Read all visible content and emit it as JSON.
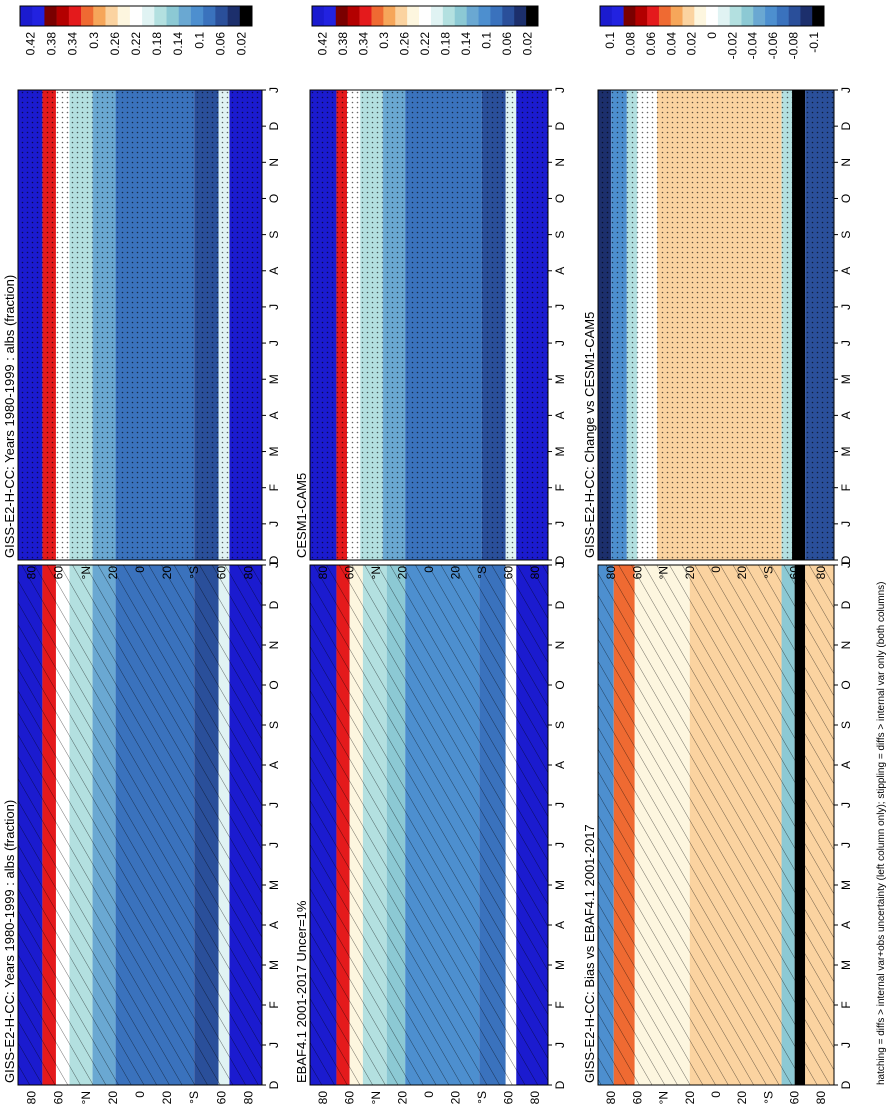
{
  "chart_data": [
    {
      "type": "heatmap",
      "title": "GISS-E2-H-CC: Years 1980-1999 : albs (fraction)",
      "x_ticks": [
        "D",
        "J",
        "F",
        "M",
        "A",
        "M",
        "J",
        "J",
        "A",
        "S",
        "O",
        "N",
        "D",
        "J"
      ],
      "y_ticks": [
        "80",
        "60",
        "°N",
        "20",
        "0",
        "20",
        "°S",
        "60",
        "80"
      ],
      "colorbar_ticks": [
        "0.42",
        "0.38",
        "0.34",
        "0.3",
        "0.26",
        "0.22",
        "0.18",
        "0.14",
        "0.1",
        "0.06",
        "0.02"
      ],
      "overlay": "hatching",
      "palette": [
        "#1b1bcf",
        "#2222e0",
        "#7a0000",
        "#b30000",
        "#e41a1c",
        "#ef6a32",
        "#f6a65a",
        "#fbd3a0",
        "#fdf6df",
        "#ffffff",
        "#e0f3f3",
        "#b3e0e0",
        "#8cc9d4",
        "#6aa8d2",
        "#4d8fcf",
        "#3a72bd",
        "#2a4f9a",
        "#1c2f6c",
        "#000000"
      ],
      "zones": [
        {
          "lat_from": 90,
          "lat_to": 72,
          "value": 0.46
        },
        {
          "lat_from": 72,
          "lat_to": 62,
          "value": 0.34
        },
        {
          "lat_from": 62,
          "lat_to": 52,
          "value": 0.22
        },
        {
          "lat_from": 52,
          "lat_to": 35,
          "value": 0.16
        },
        {
          "lat_from": 35,
          "lat_to": 18,
          "value": 0.13
        },
        {
          "lat_from": 18,
          "lat_to": -40,
          "value": 0.08
        },
        {
          "lat_from": -40,
          "lat_to": -58,
          "value": 0.06
        },
        {
          "lat_from": -58,
          "lat_to": -66,
          "value": 0.2
        },
        {
          "lat_from": -66,
          "lat_to": -90,
          "value": 0.46
        }
      ]
    },
    {
      "type": "heatmap",
      "title": "GISS-E2-H-CC: Years 1980-1999 : albs (fraction)",
      "x_ticks": [
        "D",
        "J",
        "F",
        "M",
        "A",
        "M",
        "J",
        "J",
        "A",
        "S",
        "O",
        "N",
        "D",
        "J"
      ],
      "y_ticks": [
        "80",
        "60",
        "°N",
        "20",
        "0",
        "20",
        "°S",
        "60",
        "80"
      ],
      "colorbar_ticks": [
        "0.42",
        "0.38",
        "0.34",
        "0.3",
        "0.26",
        "0.22",
        "0.18",
        "0.14",
        "0.1",
        "0.06",
        "0.02"
      ],
      "overlay": "stippling",
      "palette": [
        "#1b1bcf",
        "#2222e0",
        "#7a0000",
        "#b30000",
        "#e41a1c",
        "#ef6a32",
        "#f6a65a",
        "#fbd3a0",
        "#fdf6df",
        "#ffffff",
        "#e0f3f3",
        "#b3e0e0",
        "#8cc9d4",
        "#6aa8d2",
        "#4d8fcf",
        "#3a72bd",
        "#2a4f9a",
        "#1c2f6c",
        "#000000"
      ],
      "zones": [
        {
          "lat_from": 90,
          "lat_to": 72,
          "value": 0.46
        },
        {
          "lat_from": 72,
          "lat_to": 62,
          "value": 0.34
        },
        {
          "lat_from": 62,
          "lat_to": 52,
          "value": 0.22
        },
        {
          "lat_from": 52,
          "lat_to": 35,
          "value": 0.16
        },
        {
          "lat_from": 35,
          "lat_to": 18,
          "value": 0.13
        },
        {
          "lat_from": 18,
          "lat_to": -40,
          "value": 0.08
        },
        {
          "lat_from": -40,
          "lat_to": -58,
          "value": 0.06
        },
        {
          "lat_from": -58,
          "lat_to": -66,
          "value": 0.2
        },
        {
          "lat_from": -66,
          "lat_to": -90,
          "value": 0.46
        }
      ]
    },
    {
      "type": "heatmap",
      "title": "EBAF4.1 2001-2017 Uncer=1%",
      "x_ticks": [
        "D",
        "J",
        "F",
        "M",
        "A",
        "M",
        "J",
        "J",
        "A",
        "S",
        "O",
        "N",
        "D",
        "J"
      ],
      "y_ticks": [
        "80",
        "60",
        "°N",
        "20",
        "0",
        "20",
        "°S",
        "60",
        "80"
      ],
      "colorbar_ticks": [
        "0.42",
        "0.38",
        "0.34",
        "0.3",
        "0.26",
        "0.22",
        "0.18",
        "0.14",
        "0.1",
        "0.06",
        "0.02"
      ],
      "overlay": "hatching",
      "palette": [
        "#1b1bcf",
        "#2222e0",
        "#7a0000",
        "#b30000",
        "#e41a1c",
        "#ef6a32",
        "#f6a65a",
        "#fbd3a0",
        "#fdf6df",
        "#ffffff",
        "#e0f3f3",
        "#b3e0e0",
        "#8cc9d4",
        "#6aa8d2",
        "#4d8fcf",
        "#3a72bd",
        "#2a4f9a",
        "#1c2f6c",
        "#000000"
      ],
      "zones": [
        {
          "lat_from": 90,
          "lat_to": 70,
          "value": 0.46
        },
        {
          "lat_from": 70,
          "lat_to": 60,
          "value": 0.34
        },
        {
          "lat_from": 60,
          "lat_to": 50,
          "value": 0.24
        },
        {
          "lat_from": 50,
          "lat_to": 32,
          "value": 0.17
        },
        {
          "lat_from": 32,
          "lat_to": 18,
          "value": 0.14
        },
        {
          "lat_from": 18,
          "lat_to": -38,
          "value": 0.09
        },
        {
          "lat_from": -38,
          "lat_to": -58,
          "value": 0.07
        },
        {
          "lat_from": -58,
          "lat_to": -66,
          "value": 0.22
        },
        {
          "lat_from": -66,
          "lat_to": -90,
          "value": 0.46
        }
      ]
    },
    {
      "type": "heatmap",
      "title": "CESM1-CAM5",
      "x_ticks": [
        "D",
        "J",
        "F",
        "M",
        "A",
        "M",
        "J",
        "J",
        "A",
        "S",
        "O",
        "N",
        "D",
        "J"
      ],
      "y_ticks": [
        "80",
        "60",
        "°N",
        "20",
        "0",
        "20",
        "°S",
        "60",
        "80"
      ],
      "colorbar_ticks": [
        "0.42",
        "0.38",
        "0.34",
        "0.3",
        "0.26",
        "0.22",
        "0.18",
        "0.14",
        "0.1",
        "0.06",
        "0.02"
      ],
      "overlay": "stippling",
      "palette": [
        "#1b1bcf",
        "#2222e0",
        "#7a0000",
        "#b30000",
        "#e41a1c",
        "#ef6a32",
        "#f6a65a",
        "#fbd3a0",
        "#fdf6df",
        "#ffffff",
        "#e0f3f3",
        "#b3e0e0",
        "#8cc9d4",
        "#6aa8d2",
        "#4d8fcf",
        "#3a72bd",
        "#2a4f9a",
        "#1c2f6c",
        "#000000"
      ],
      "zones": [
        {
          "lat_from": 90,
          "lat_to": 70,
          "value": 0.46
        },
        {
          "lat_from": 70,
          "lat_to": 62,
          "value": 0.34
        },
        {
          "lat_from": 62,
          "lat_to": 52,
          "value": 0.23
        },
        {
          "lat_from": 52,
          "lat_to": 35,
          "value": 0.16
        },
        {
          "lat_from": 35,
          "lat_to": 18,
          "value": 0.13
        },
        {
          "lat_from": 18,
          "lat_to": -40,
          "value": 0.08
        },
        {
          "lat_from": -40,
          "lat_to": -58,
          "value": 0.06
        },
        {
          "lat_from": -58,
          "lat_to": -66,
          "value": 0.2
        },
        {
          "lat_from": -66,
          "lat_to": -90,
          "value": 0.46
        }
      ]
    },
    {
      "type": "heatmap",
      "title": "GISS-E2-H-CC: Bias vs EBAF4.1 2001-2017",
      "x_ticks": [
        "D",
        "J",
        "F",
        "M",
        "A",
        "M",
        "J",
        "J",
        "A",
        "S",
        "O",
        "N",
        "D",
        "J"
      ],
      "y_ticks": [
        "80",
        "60",
        "°N",
        "20",
        "0",
        "20",
        "°S",
        "60",
        "80"
      ],
      "colorbar_ticks": [
        "0.1",
        "0.08",
        "0.06",
        "0.04",
        "0.02",
        "0",
        "-0.02",
        "-0.04",
        "-0.06",
        "-0.08",
        "-0.1"
      ],
      "overlay": "hatching",
      "palette": [
        "#1b1bcf",
        "#2222e0",
        "#7a0000",
        "#b30000",
        "#e41a1c",
        "#ef6a32",
        "#f6a65a",
        "#fbd3a0",
        "#fdf6df",
        "#ffffff",
        "#e0f3f3",
        "#b3e0e0",
        "#8cc9d4",
        "#6aa8d2",
        "#4d8fcf",
        "#3a72bd",
        "#2a4f9a",
        "#1c2f6c",
        "#000000"
      ],
      "zones": [
        {
          "lat_from": 90,
          "lat_to": 78,
          "value": -0.06
        },
        {
          "lat_from": 78,
          "lat_to": 62,
          "value": 0.05
        },
        {
          "lat_from": 62,
          "lat_to": 50,
          "value": 0.015
        },
        {
          "lat_from": 50,
          "lat_to": 20,
          "value": 0.01
        },
        {
          "lat_from": 20,
          "lat_to": -50,
          "value": 0.025
        },
        {
          "lat_from": -50,
          "lat_to": -60,
          "value": -0.04
        },
        {
          "lat_from": -60,
          "lat_to": -68,
          "value": -0.12
        },
        {
          "lat_from": -68,
          "lat_to": -90,
          "value": 0.03
        }
      ]
    },
    {
      "type": "heatmap",
      "title": "GISS-E2-H-CC: Change vs CESM1-CAM5",
      "x_ticks": [
        "D",
        "J",
        "F",
        "M",
        "A",
        "M",
        "J",
        "J",
        "A",
        "S",
        "O",
        "N",
        "D",
        "J"
      ],
      "y_ticks": [
        "80",
        "60",
        "°N",
        "20",
        "0",
        "20",
        "°S",
        "60",
        "80"
      ],
      "colorbar_ticks": [
        "0.1",
        "0.08",
        "0.06",
        "0.04",
        "0.02",
        "0",
        "-0.02",
        "-0.04",
        "-0.06",
        "-0.08",
        "-0.1"
      ],
      "overlay": "stippling",
      "palette": [
        "#1b1bcf",
        "#2222e0",
        "#7a0000",
        "#b30000",
        "#e41a1c",
        "#ef6a32",
        "#f6a65a",
        "#fbd3a0",
        "#fdf6df",
        "#ffffff",
        "#e0f3f3",
        "#b3e0e0",
        "#8cc9d4",
        "#6aa8d2",
        "#4d8fcf",
        "#3a72bd",
        "#2a4f9a",
        "#1c2f6c",
        "#000000"
      ],
      "zones": [
        {
          "lat_from": 90,
          "lat_to": 80,
          "value": -0.1
        },
        {
          "lat_from": 80,
          "lat_to": 68,
          "value": -0.06
        },
        {
          "lat_from": 68,
          "lat_to": 60,
          "value": -0.02
        },
        {
          "lat_from": 60,
          "lat_to": 45,
          "value": 0.005
        },
        {
          "lat_from": 45,
          "lat_to": -50,
          "value": 0.025
        },
        {
          "lat_from": -50,
          "lat_to": -58,
          "value": -0.02
        },
        {
          "lat_from": -58,
          "lat_to": -68,
          "value": -0.12
        },
        {
          "lat_from": -68,
          "lat_to": -90,
          "value": -0.08
        }
      ]
    }
  ],
  "footer": "hatching = diffs > internal var+obs uncertainty (left column only); stippling = diffs > internal var only (both columns)"
}
